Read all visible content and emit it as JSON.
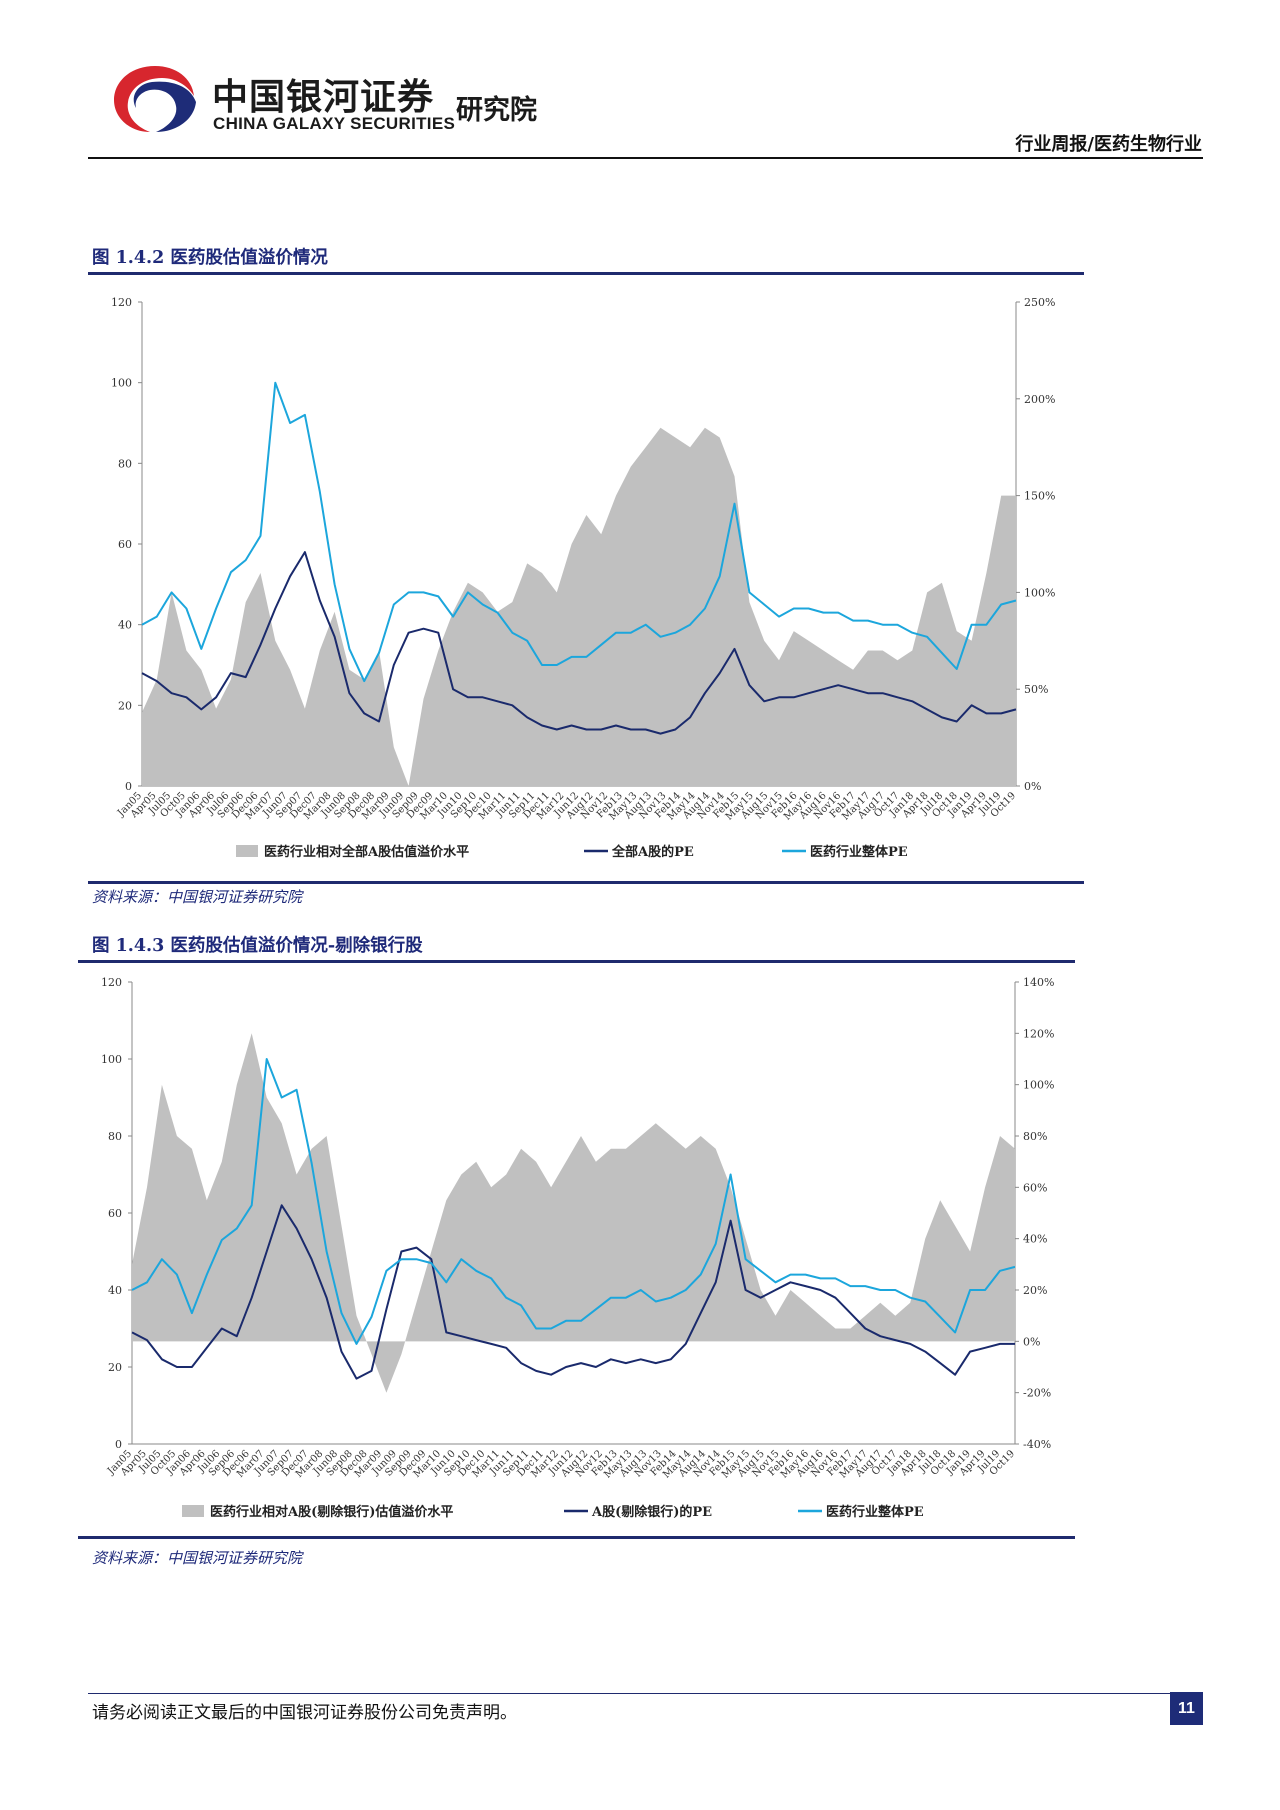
{
  "header": {
    "brand_cn": "中国银河证券",
    "brand_en": "CHINA GALAXY SECURITIES",
    "brand_inst": "研究院",
    "category": "行业周报/医药生物行业"
  },
  "figures": [
    {
      "title": "图 1.4.2  医药股估值溢价情况",
      "source": "资料来源：中国银河证券研究院"
    },
    {
      "title": "图 1.4.3  医药股估值溢价情况-剔除银行股",
      "source": "资料来源：中国银河证券研究院"
    }
  ],
  "chart_data": [
    {
      "type": "area+line",
      "title": "医药股估值溢价情况",
      "x": [
        "Jan05",
        "Apr05",
        "Jul05",
        "Oct05",
        "Jan06",
        "Apr06",
        "Jul06",
        "Oct06",
        "Jan07",
        "Apr07",
        "Jul07",
        "Oct07",
        "Jan08",
        "Apr08",
        "Jul08",
        "Oct08",
        "Jan09",
        "Apr09",
        "Jul09",
        "Oct09",
        "Jan10",
        "Apr10",
        "Jul10",
        "Oct10",
        "Jan11",
        "Apr11",
        "Jul11",
        "Oct11",
        "Jan12",
        "Apr12",
        "Jul12",
        "Oct12",
        "Jan13",
        "Apr13",
        "Jul13",
        "Oct13",
        "Jan14",
        "Apr14",
        "Jul14",
        "Oct14",
        "Jan15",
        "Apr15",
        "Jul15",
        "Oct15",
        "Jan16",
        "Apr16",
        "Jul16",
        "Oct16",
        "Jan17",
        "Apr17",
        "Jul17",
        "Oct17",
        "Jan18",
        "Apr18",
        "Jul18",
        "Oct18",
        "Jan19",
        "Apr19",
        "Jul19",
        "Oct19"
      ],
      "x_tick_labels": [
        "Jan05",
        "Apr05",
        "Jul05",
        "Oct05",
        "Jan06",
        "Apr06",
        "Jul06",
        "Sep06",
        "Dec06",
        "Mar07",
        "Jun07",
        "Sep07",
        "Dec07",
        "Mar08",
        "Jun08",
        "Sep08",
        "Dec08",
        "Mar09",
        "Jun09",
        "Sep09",
        "Dec09",
        "Mar10",
        "Jun10",
        "Sep10",
        "Dec10",
        "Mar11",
        "Jun11",
        "Sep11",
        "Dec11",
        "Mar12",
        "Jun12",
        "Aug12",
        "Nov12",
        "Feb13",
        "May13",
        "Aug13",
        "Nov13",
        "Feb14",
        "May14",
        "Aug14",
        "Nov14",
        "Feb15",
        "May15",
        "Aug15",
        "Nov15",
        "Feb16",
        "May16",
        "Aug16",
        "Nov16",
        "Feb17",
        "May17",
        "Aug17",
        "Oct17",
        "Jan18",
        "Apr18",
        "Jul18",
        "Oct18",
        "Jan19",
        "Apr19",
        "Jul19",
        "Oct19"
      ],
      "y_left": {
        "min": 0,
        "max": 120,
        "ticks": [
          "0",
          "20",
          "40",
          "60",
          "80",
          "100",
          "120"
        ]
      },
      "y_right": {
        "min": 0,
        "max": 250,
        "ticks": [
          "0%",
          "50%",
          "100%",
          "150%",
          "200%",
          "250%"
        ]
      },
      "series": [
        {
          "name": "医药行业相对全部A股估值溢价水平",
          "kind": "area",
          "axis": "right",
          "color": "#c0c0c0",
          "values": [
            38,
            55,
            100,
            70,
            60,
            40,
            55,
            95,
            110,
            75,
            60,
            40,
            70,
            90,
            60,
            55,
            70,
            20,
            0,
            45,
            70,
            90,
            105,
            100,
            90,
            95,
            115,
            110,
            100,
            125,
            140,
            130,
            150,
            165,
            175,
            185,
            180,
            175,
            185,
            180,
            160,
            95,
            75,
            65,
            80,
            75,
            70,
            65,
            60,
            70,
            70,
            65,
            70,
            100,
            105,
            80,
            75,
            110,
            150,
            150
          ]
        },
        {
          "name": "全部A股的PE",
          "kind": "line",
          "axis": "left",
          "color": "#1a2a6c",
          "values": [
            28,
            26,
            23,
            22,
            19,
            22,
            28,
            27,
            35,
            44,
            52,
            58,
            46,
            37,
            23,
            18,
            16,
            30,
            38,
            39,
            38,
            24,
            22,
            22,
            21,
            20,
            17,
            15,
            14,
            15,
            14,
            14,
            15,
            14,
            14,
            13,
            14,
            17,
            23,
            28,
            34,
            25,
            21,
            22,
            22,
            23,
            24,
            25,
            24,
            23,
            23,
            22,
            21,
            19,
            17,
            16,
            20,
            18,
            18,
            19
          ]
        },
        {
          "name": "医药行业整体PE",
          "kind": "line",
          "axis": "left",
          "color": "#1ca6dc",
          "values": [
            40,
            42,
            48,
            44,
            34,
            44,
            53,
            56,
            62,
            100,
            90,
            92,
            73,
            50,
            34,
            26,
            33,
            45,
            48,
            48,
            47,
            42,
            48,
            45,
            43,
            38,
            36,
            30,
            30,
            32,
            32,
            35,
            38,
            38,
            40,
            37,
            38,
            40,
            44,
            52,
            70,
            48,
            45,
            42,
            44,
            44,
            43,
            43,
            41,
            41,
            40,
            40,
            38,
            37,
            33,
            29,
            40,
            40,
            45,
            46
          ]
        }
      ],
      "legend": [
        "医药行业相对全部A股估值溢价水平",
        "全部A股的PE",
        "医药行业整体PE"
      ],
      "legend_position": "bottom"
    },
    {
      "type": "area+line",
      "title": "医药股估值溢价情况-剔除银行股",
      "x": [
        "Jan05",
        "Apr05",
        "Jul05",
        "Oct05",
        "Jan06",
        "Apr06",
        "Jul06",
        "Oct06",
        "Jan07",
        "Apr07",
        "Jul07",
        "Oct07",
        "Jan08",
        "Apr08",
        "Jul08",
        "Oct08",
        "Jan09",
        "Apr09",
        "Jul09",
        "Oct09",
        "Jan10",
        "Apr10",
        "Jul10",
        "Oct10",
        "Jan11",
        "Apr11",
        "Jul11",
        "Oct11",
        "Jan12",
        "Apr12",
        "Jul12",
        "Oct12",
        "Jan13",
        "Apr13",
        "Jul13",
        "Oct13",
        "Jan14",
        "Apr14",
        "Jul14",
        "Oct14",
        "Jan15",
        "Apr15",
        "Jul15",
        "Oct15",
        "Jan16",
        "Apr16",
        "Jul16",
        "Oct16",
        "Jan17",
        "Apr17",
        "Jul17",
        "Oct17",
        "Jan18",
        "Apr18",
        "Jul18",
        "Oct18",
        "Jan19",
        "Apr19",
        "Jul19",
        "Oct19"
      ],
      "x_tick_labels": [
        "Jan05",
        "Apr05",
        "Jul05",
        "Oct05",
        "Jan06",
        "Apr06",
        "Jul06",
        "Sep06",
        "Dec06",
        "Mar07",
        "Jun07",
        "Sep07",
        "Dec07",
        "Mar08",
        "Jun08",
        "Sep08",
        "Dec08",
        "Mar09",
        "Jun09",
        "Sep09",
        "Dec09",
        "Mar10",
        "Jun10",
        "Sep10",
        "Dec10",
        "Mar11",
        "Jun11",
        "Sep11",
        "Dec11",
        "Mar12",
        "Jun12",
        "Aug12",
        "Nov12",
        "Feb13",
        "May13",
        "Aug13",
        "Nov13",
        "Feb14",
        "May14",
        "Aug14",
        "Nov14",
        "Feb15",
        "May15",
        "Aug15",
        "Nov15",
        "Feb16",
        "May16",
        "Aug16",
        "Nov16",
        "Feb17",
        "May17",
        "Aug17",
        "Oct17",
        "Jan18",
        "Apr18",
        "Jul18",
        "Oct18",
        "Jan19",
        "Apr19",
        "Jul19",
        "Oct19"
      ],
      "y_left": {
        "min": 0,
        "max": 120,
        "ticks": [
          "0",
          "20",
          "40",
          "60",
          "80",
          "100",
          "120"
        ]
      },
      "y_right": {
        "min": -40,
        "max": 140,
        "ticks": [
          "-40%",
          "-20%",
          "0%",
          "20%",
          "40%",
          "60%",
          "80%",
          "100%",
          "120%",
          "140%"
        ]
      },
      "series": [
        {
          "name": "医药行业相对A股(剔除银行)估值溢价水平",
          "kind": "area",
          "axis": "right",
          "color": "#c0c0c0",
          "values": [
            30,
            60,
            100,
            80,
            75,
            55,
            70,
            100,
            120,
            95,
            85,
            65,
            75,
            80,
            45,
            10,
            -5,
            -20,
            -5,
            15,
            35,
            55,
            65,
            70,
            60,
            65,
            75,
            70,
            60,
            70,
            80,
            70,
            75,
            75,
            80,
            85,
            80,
            75,
            80,
            75,
            60,
            40,
            20,
            10,
            20,
            15,
            10,
            5,
            5,
            10,
            15,
            10,
            15,
            40,
            55,
            45,
            35,
            60,
            80,
            75
          ]
        },
        {
          "name": "A股(剔除银行)的PE",
          "kind": "line",
          "axis": "left",
          "color": "#1a2a6c",
          "values": [
            29,
            27,
            22,
            20,
            20,
            25,
            30,
            28,
            38,
            50,
            62,
            56,
            48,
            38,
            24,
            17,
            19,
            35,
            50,
            51,
            48,
            29,
            28,
            27,
            26,
            25,
            21,
            19,
            18,
            20,
            21,
            20,
            22,
            21,
            22,
            21,
            22,
            26,
            34,
            42,
            58,
            40,
            38,
            40,
            42,
            41,
            40,
            38,
            34,
            30,
            28,
            27,
            26,
            24,
            21,
            18,
            24,
            25,
            26,
            26
          ]
        },
        {
          "name": "医药行业整体PE",
          "kind": "line",
          "axis": "left",
          "color": "#1ca6dc",
          "values": [
            40,
            42,
            48,
            44,
            34,
            44,
            53,
            56,
            62,
            100,
            90,
            92,
            73,
            50,
            34,
            26,
            33,
            45,
            48,
            48,
            47,
            42,
            48,
            45,
            43,
            38,
            36,
            30,
            30,
            32,
            32,
            35,
            38,
            38,
            40,
            37,
            38,
            40,
            44,
            52,
            70,
            48,
            45,
            42,
            44,
            44,
            43,
            43,
            41,
            41,
            40,
            40,
            38,
            37,
            33,
            29,
            40,
            40,
            45,
            46
          ]
        }
      ],
      "legend": [
        "医药行业相对A股(剔除银行)估值溢价水平",
        "A股(剔除银行)的PE",
        "医药行业整体PE"
      ],
      "legend_position": "bottom"
    }
  ],
  "footer": {
    "disclaimer": "请务必阅读正文最后的中国银河证券股份公司免责声明。",
    "page_number": "11"
  }
}
